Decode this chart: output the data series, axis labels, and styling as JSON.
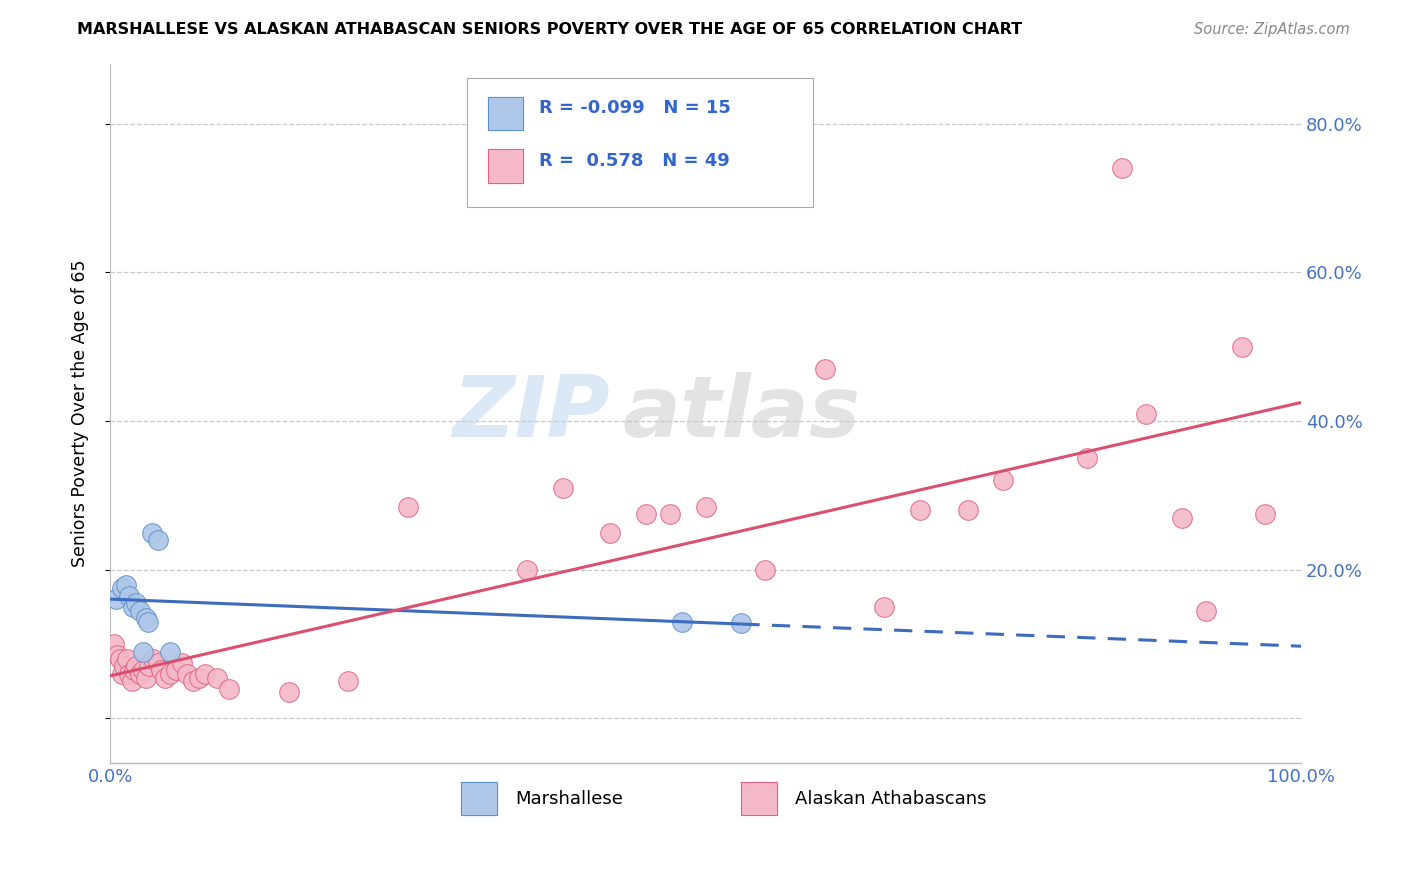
{
  "title": "MARSHALLESE VS ALASKAN ATHABASCAN SENIORS POVERTY OVER THE AGE OF 65 CORRELATION CHART",
  "source": "Source: ZipAtlas.com",
  "ylabel": "Seniors Poverty Over the Age of 65",
  "xlim": [
    0.0,
    1.0
  ],
  "ylim": [
    -0.06,
    0.88
  ],
  "xticks": [
    0.0,
    1.0
  ],
  "xticklabels": [
    "0.0%",
    "100.0%"
  ],
  "ytick_positions": [
    0.0,
    0.2,
    0.4,
    0.6,
    0.8
  ],
  "yticklabels_right": [
    "",
    "20.0%",
    "40.0%",
    "60.0%",
    "80.0%"
  ],
  "grid_color": "#c8c8c8",
  "background_color": "#ffffff",
  "watermark_zip": "ZIP",
  "watermark_atlas": "atlas",
  "marshallese_color": "#aec6e8",
  "marshallese_edge_color": "#5b8fc9",
  "athabascan_color": "#f5b8c8",
  "athabascan_edge_color": "#e06080",
  "marshallese_line_color": "#3c6bbf",
  "athabascan_line_color": "#d95070",
  "R_marshallese": -0.099,
  "N_marshallese": 15,
  "R_athabascan": 0.578,
  "N_athabascan": 49,
  "marshallese_x": [
    0.005,
    0.01,
    0.013,
    0.016,
    0.019,
    0.022,
    0.025,
    0.028,
    0.03,
    0.032,
    0.035,
    0.04,
    0.05,
    0.48,
    0.53
  ],
  "marshallese_y": [
    0.16,
    0.175,
    0.18,
    0.165,
    0.15,
    0.155,
    0.145,
    0.09,
    0.135,
    0.13,
    0.25,
    0.24,
    0.09,
    0.13,
    0.128
  ],
  "athabascan_x": [
    0.003,
    0.006,
    0.008,
    0.01,
    0.012,
    0.014,
    0.016,
    0.018,
    0.02,
    0.022,
    0.025,
    0.028,
    0.03,
    0.033,
    0.036,
    0.04,
    0.043,
    0.046,
    0.05,
    0.055,
    0.06,
    0.065,
    0.07,
    0.075,
    0.08,
    0.09,
    0.1,
    0.15,
    0.2,
    0.25,
    0.35,
    0.38,
    0.42,
    0.45,
    0.47,
    0.5,
    0.55,
    0.6,
    0.65,
    0.68,
    0.72,
    0.75,
    0.82,
    0.85,
    0.87,
    0.9,
    0.92,
    0.95,
    0.97
  ],
  "athabascan_y": [
    0.1,
    0.085,
    0.08,
    0.06,
    0.07,
    0.08,
    0.06,
    0.05,
    0.065,
    0.07,
    0.06,
    0.065,
    0.055,
    0.07,
    0.08,
    0.075,
    0.065,
    0.055,
    0.06,
    0.065,
    0.075,
    0.06,
    0.05,
    0.055,
    0.06,
    0.055,
    0.04,
    0.035,
    0.05,
    0.285,
    0.2,
    0.31,
    0.25,
    0.275,
    0.275,
    0.285,
    0.2,
    0.47,
    0.15,
    0.28,
    0.28,
    0.32,
    0.35,
    0.74,
    0.41,
    0.27,
    0.145,
    0.5,
    0.275
  ]
}
